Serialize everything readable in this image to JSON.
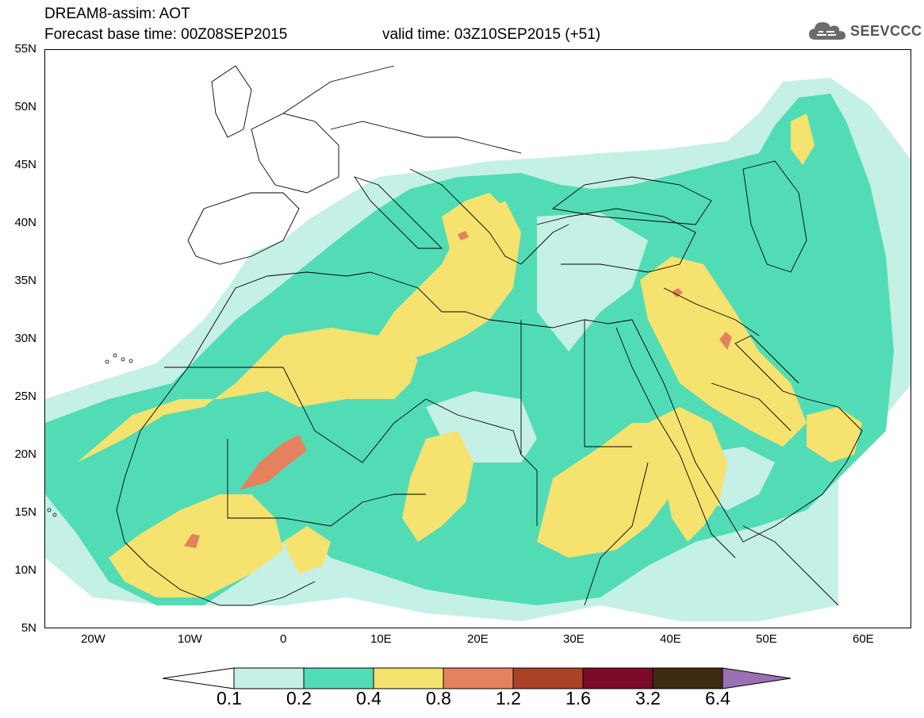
{
  "header": {
    "title": "DREAM8-assim: AOT",
    "base_time": "Forecast base time: 00Z08SEP2015",
    "valid_time": "valid time: 03Z10SEP2015 (+51)",
    "logo_text": "SEEVCCC"
  },
  "map": {
    "projection": "lat-lon",
    "lon_range": [
      "25W",
      "65E"
    ],
    "lat_range": [
      "5N",
      "55N"
    ],
    "lat_labels": [
      "55N",
      "50N",
      "45N",
      "40N",
      "35N",
      "30N",
      "25N",
      "20N",
      "15N",
      "10N",
      "5N"
    ],
    "lon_labels": [
      "20W",
      "10W",
      "0",
      "10E",
      "20E",
      "30E",
      "40E",
      "50E",
      "60E"
    ],
    "background_color": "#ffffff",
    "coastline_color": "#000000"
  },
  "legend": {
    "labels": [
      "0.1",
      "0.2",
      "0.4",
      "0.8",
      "1.2",
      "1.6",
      "3.2",
      "6.4"
    ],
    "colors": [
      "#ffffff",
      "#c5f0e6",
      "#52dcb6",
      "#f6e26e",
      "#e5825e",
      "#aa4228",
      "#7c0a28",
      "#3f2a12",
      "#9a70b2"
    ]
  }
}
